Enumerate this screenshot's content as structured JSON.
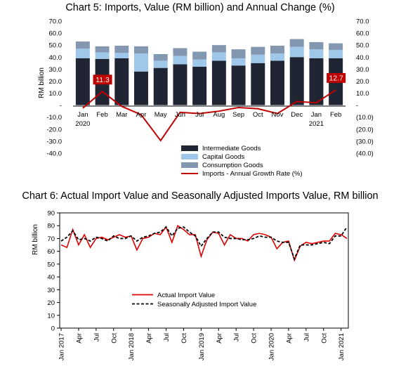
{
  "chart_data": [
    {
      "type": "bar",
      "title": "Chart 5: Imports, Value (RM billion) and Annual Change (%)",
      "ylabel": "RM billion",
      "ylim": [
        -40,
        70
      ],
      "left_ticks": [
        "70.0",
        "60.0",
        "50.0",
        "40.0",
        "30.0",
        "20.0",
        "10.0",
        "-",
        "-10.0",
        "-20.0",
        "-30.0",
        "-40.0"
      ],
      "right_ticks": [
        "70.0",
        "60.0",
        "50.0",
        "40.0",
        "30.0",
        "20.0",
        "10.0",
        "-",
        "(10.0)",
        "(20.0)",
        "(30.0)",
        "(40.0)"
      ],
      "categories": [
        "Jan",
        "Feb",
        "Mar",
        "Apr",
        "May",
        "Jun",
        "Jul",
        "Aug",
        "Sep",
        "Oct",
        "Nov",
        "Dec",
        "Jan",
        "Feb"
      ],
      "year_labels": [
        {
          "index": 0,
          "text": "2020"
        },
        {
          "index": 12,
          "text": "2021"
        }
      ],
      "stacked": true,
      "series": [
        {
          "name": "Intermediate Goods",
          "color": "#1f2533",
          "values": [
            39,
            38.5,
            39,
            28,
            31,
            34,
            32,
            37,
            33,
            35,
            37,
            40,
            39,
            39
          ]
        },
        {
          "name": "Capital Goods",
          "color": "#9ec7ea",
          "values": [
            8,
            5.5,
            4.5,
            15,
            6,
            7,
            6,
            7,
            6,
            7,
            6,
            8.5,
            7.5,
            7
          ]
        },
        {
          "name": "Consumption Goods",
          "color": "#8497b0",
          "values": [
            6,
            5,
            6,
            6,
            5.5,
            6.5,
            6.5,
            6,
            7.5,
            6.5,
            6.5,
            6.5,
            6,
            5.5
          ]
        }
      ],
      "line_series": {
        "name": "Imports - Annual Growth Rate (%)",
        "color": "#c00000",
        "values": [
          -2.5,
          11.3,
          -1,
          -8,
          -29.5,
          -6,
          -7,
          -5,
          -2,
          -3,
          -7,
          3,
          2,
          12.7
        ]
      },
      "data_labels": [
        {
          "index": 1,
          "text": "11.3"
        },
        {
          "index": 13,
          "text": "12.7"
        }
      ]
    },
    {
      "type": "line",
      "title": "Chart 6: Actual Import Value and Seasonally Adjusted Imports Value, RM billion",
      "ylabel": "RM billion",
      "ylim": [
        0,
        90
      ],
      "yticks": [
        "0",
        "10",
        "20",
        "30",
        "40",
        "50",
        "60",
        "70",
        "80",
        "90"
      ],
      "xticks": [
        {
          "index": 0,
          "text": "Jan 2017"
        },
        {
          "index": 3,
          "text": "Apr"
        },
        {
          "index": 6,
          "text": "Jul"
        },
        {
          "index": 9,
          "text": "Oct"
        },
        {
          "index": 12,
          "text": "Jan 2018"
        },
        {
          "index": 15,
          "text": "Apr"
        },
        {
          "index": 18,
          "text": "Jul"
        },
        {
          "index": 21,
          "text": "Oct"
        },
        {
          "index": 24,
          "text": "Jan 2019"
        },
        {
          "index": 27,
          "text": "Apr"
        },
        {
          "index": 30,
          "text": "Jul"
        },
        {
          "index": 33,
          "text": "Oct"
        },
        {
          "index": 36,
          "text": "Jan 2020"
        },
        {
          "index": 39,
          "text": "Apr"
        },
        {
          "index": 42,
          "text": "Jul"
        },
        {
          "index": 45,
          "text": "Oct"
        },
        {
          "index": 48,
          "text": "Jan 2021"
        }
      ],
      "series": [
        {
          "name": "Actual Import Value",
          "color": "#e00000",
          "dash": "solid",
          "values": [
            65,
            63,
            77,
            65,
            73,
            63,
            70,
            71,
            69,
            71,
            73,
            71,
            72,
            61,
            70,
            71,
            74,
            73,
            79,
            67,
            80,
            77,
            73,
            73,
            56,
            69,
            75,
            74,
            65,
            73,
            70,
            70,
            68,
            73,
            74,
            73,
            71,
            62,
            67,
            68,
            53,
            64,
            67,
            66,
            67,
            68,
            68,
            74,
            73,
            70
          ]
        },
        {
          "name": "Seasonally Adjusted Import Value",
          "color": "#000000",
          "dash": "dashed",
          "values": [
            68,
            71,
            76,
            69,
            70,
            68,
            71,
            70,
            68,
            72,
            70,
            70,
            72,
            68,
            71,
            72,
            74,
            75,
            79,
            72,
            78,
            79,
            75,
            72,
            64,
            70,
            75,
            75,
            71,
            70,
            70,
            69,
            69,
            70,
            72,
            71,
            71,
            68,
            67,
            67,
            54,
            65,
            65,
            65,
            66,
            67,
            66,
            72,
            72,
            79
          ]
        }
      ]
    }
  ]
}
